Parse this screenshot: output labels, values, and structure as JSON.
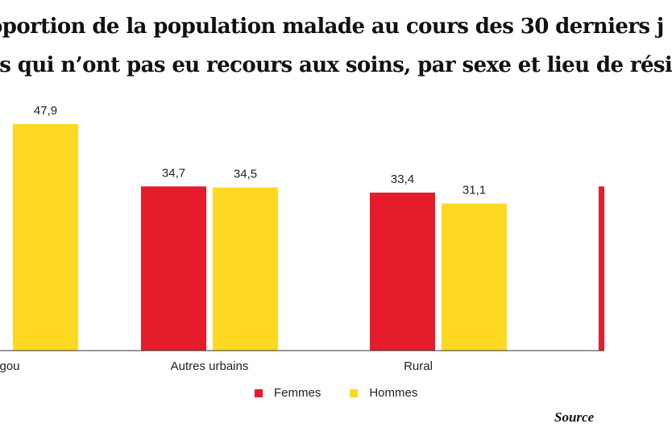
{
  "chart_data": {
    "type": "bar",
    "title_lines": [
      "oportion de la population malade au cours des 30 derniers j",
      "is qui n’ont pas eu recours aux soins, par sexe et lieu de rési"
    ],
    "categories": [
      "gou",
      "Autres urbains",
      "Rural"
    ],
    "series": [
      {
        "name": "Femmes",
        "color": "#e51c2c",
        "values": [
          null,
          34.7,
          33.4
        ]
      },
      {
        "name": "Hommes",
        "color": "#fdd923",
        "values": [
          47.9,
          34.5,
          31.1
        ]
      }
    ],
    "value_labels": {
      "Femmes": [
        "",
        "34,7",
        "33,4"
      ],
      "Hommes": [
        "47,9",
        "34,5",
        "31,1"
      ]
    },
    "partial_bar": {
      "series": "Femmes",
      "color": "#e51c2c",
      "value": 34.7
    },
    "ylim": [
      0,
      60
    ],
    "grid": false,
    "legend_position": "bottom-center"
  },
  "legend": {
    "items": [
      {
        "label": "Femmes",
        "color": "#e51c2c"
      },
      {
        "label": "Hommes",
        "color": "#fdd923"
      }
    ]
  },
  "source": "Source"
}
